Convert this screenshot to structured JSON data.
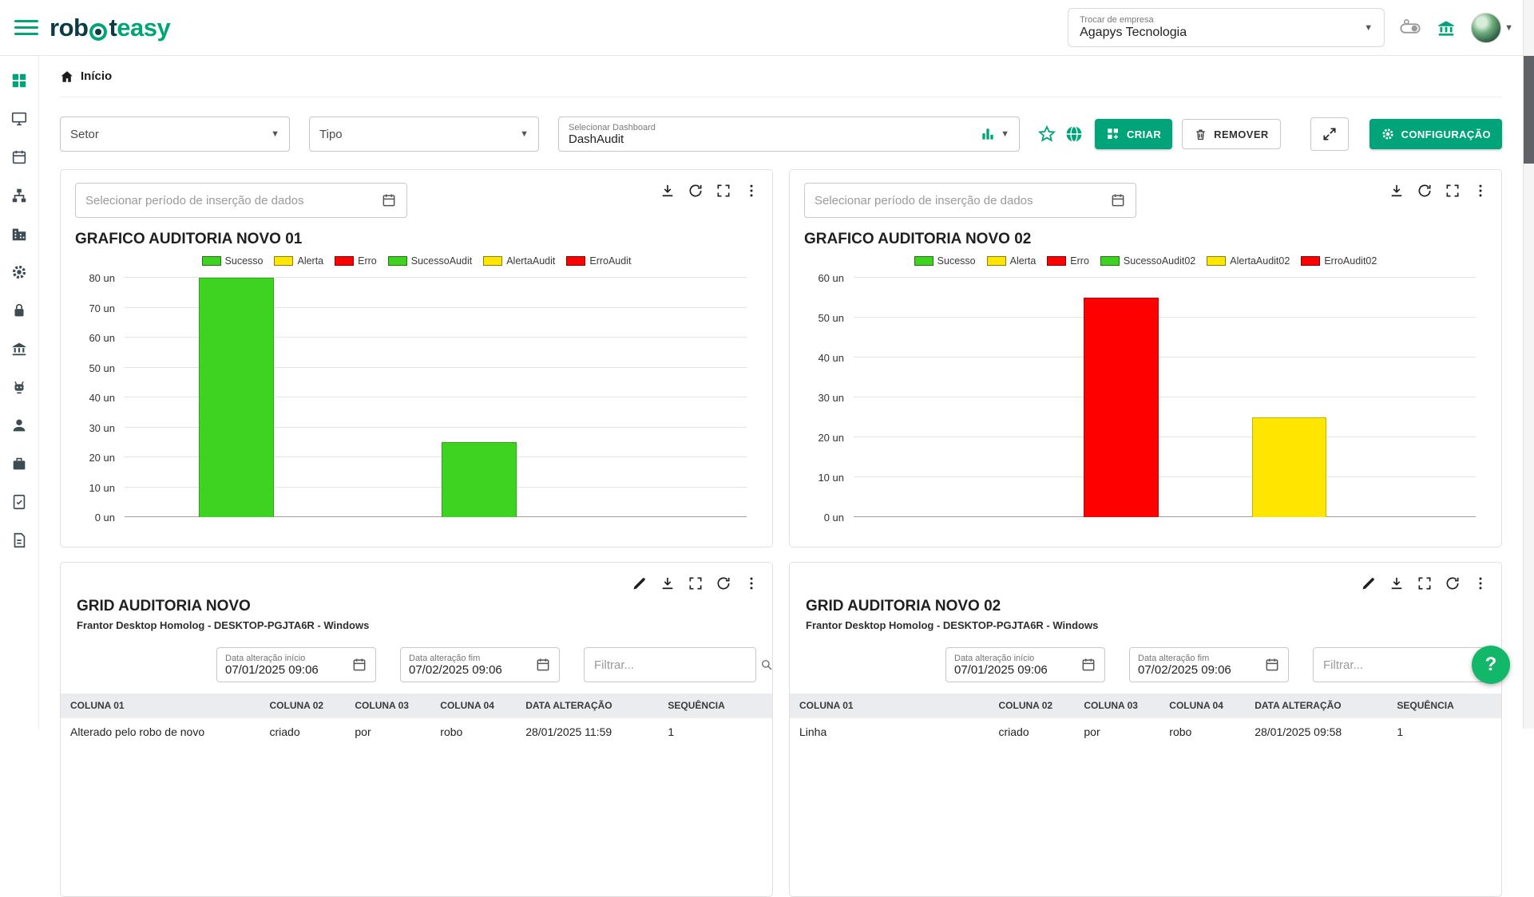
{
  "colors": {
    "brand": "#00a478",
    "brand_dark": "#0c3b45",
    "help_green": "#12b76a",
    "bar_green": "#3fd321",
    "bar_yellow": "#ffe600",
    "bar_red": "#fe0000"
  },
  "header": {
    "logo": {
      "part_rob": "rob",
      "part_t": "t",
      "part_easy": "easy"
    },
    "company": {
      "label": "Trocar de empresa",
      "value": "Agapys Tecnologia"
    }
  },
  "breadcrumb": {
    "home": "Início"
  },
  "filters": {
    "setor": "Setor",
    "tipo": "Tipo",
    "dashboard_label": "Selecionar Dashboard",
    "dashboard_value": "DashAudit",
    "criar": "CRIAR",
    "remover": "REMOVER",
    "configuracao": "CONFIGURAÇÃO"
  },
  "chart_cards": [
    {
      "period_placeholder": "Selecionar período de inserção de dados",
      "title": "GRAFICO AUDITORIA NOVO 01"
    },
    {
      "period_placeholder": "Selecionar período de inserção de dados",
      "title": "GRAFICO AUDITORIA NOVO 02"
    }
  ],
  "chart_data": [
    {
      "type": "bar",
      "title": "GRAFICO AUDITORIA NOVO 01",
      "unit": "un",
      "ylim": [
        0,
        80
      ],
      "ytick": 10,
      "bar_width": 0.12,
      "legend": [
        {
          "label": "Sucesso",
          "color": "#3fd321"
        },
        {
          "label": "Alerta",
          "color": "#ffe600"
        },
        {
          "label": "Erro",
          "color": "#fe0000"
        },
        {
          "label": "SucessoAudit",
          "color": "#3fd321"
        },
        {
          "label": "AlertaAudit",
          "color": "#ffe600"
        },
        {
          "label": "ErroAudit",
          "color": "#fe0000"
        }
      ],
      "bars": [
        {
          "label": "Sucesso",
          "value": 80,
          "color": "#3fd321",
          "x": 0.18
        },
        {
          "label": "SucessoAudit",
          "value": 25,
          "color": "#3fd321",
          "x": 0.57
        }
      ]
    },
    {
      "type": "bar",
      "title": "GRAFICO AUDITORIA NOVO 02",
      "unit": "un",
      "ylim": [
        0,
        60
      ],
      "ytick": 10,
      "bar_width": 0.12,
      "legend": [
        {
          "label": "Sucesso",
          "color": "#3fd321"
        },
        {
          "label": "Alerta",
          "color": "#ffe600"
        },
        {
          "label": "Erro",
          "color": "#fe0000"
        },
        {
          "label": "SucessoAudit02",
          "color": "#3fd321"
        },
        {
          "label": "AlertaAudit02",
          "color": "#ffe600"
        },
        {
          "label": "ErroAudit02",
          "color": "#fe0000"
        }
      ],
      "bars": [
        {
          "label": "Erro",
          "value": 55,
          "color": "#fe0000",
          "x": 0.43
        },
        {
          "label": "AlertaAudit02",
          "value": 25,
          "color": "#ffe600",
          "x": 0.7
        }
      ]
    }
  ],
  "grid_cards": [
    {
      "title": "GRID AUDITORIA NOVO",
      "subtitle": "Frantor Desktop Homolog - DESKTOP-PGJTA6R - Windows",
      "date_start_label": "Data alteração início",
      "date_start_value": "07/01/2025 09:06",
      "date_end_label": "Data alteração fim",
      "date_end_value": "07/02/2025 09:06",
      "filter_placeholder": "Filtrar...",
      "table": {
        "headers": [
          "COLUNA 01",
          "COLUNA 02",
          "COLUNA 03",
          "COLUNA 04",
          "DATA ALTERAÇÃO",
          "SEQUÊNCIA"
        ],
        "rows": [
          [
            "Alterado pelo robo de novo",
            "criado",
            "por",
            "robo",
            "28/01/2025 11:59",
            "1"
          ]
        ]
      }
    },
    {
      "title": "GRID AUDITORIA NOVO 02",
      "subtitle": "Frantor Desktop Homolog - DESKTOP-PGJTA6R - Windows",
      "date_start_label": "Data alteração início",
      "date_start_value": "07/01/2025 09:06",
      "date_end_label": "Data alteração fim",
      "date_end_value": "07/02/2025 09:06",
      "filter_placeholder": "Filtrar...",
      "table": {
        "headers": [
          "COLUNA 01",
          "COLUNA 02",
          "COLUNA 03",
          "COLUNA 04",
          "DATA ALTERAÇÃO",
          "SEQUÊNCIA"
        ],
        "rows": [
          [
            "Linha",
            "criado",
            "por",
            "robo",
            "28/01/2025 09:58",
            "1"
          ]
        ]
      }
    }
  ],
  "sidebar": {
    "items": [
      "dashboard",
      "monitor",
      "calendar",
      "workflow",
      "company",
      "settings",
      "lock",
      "bank",
      "robot",
      "user",
      "briefcase",
      "tasks",
      "report"
    ]
  },
  "help": {
    "label": "?"
  }
}
